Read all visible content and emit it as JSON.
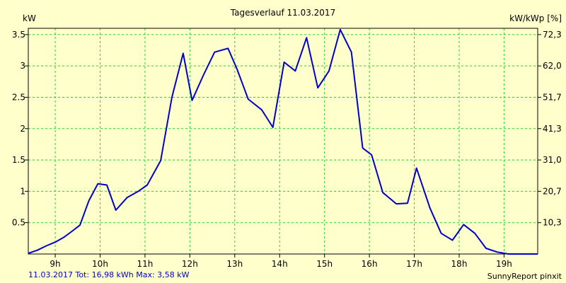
{
  "chart_data": {
    "type": "line",
    "title": "Tagesverlauf 11.03.2017",
    "ylabel_left": "kW",
    "ylabel_right": "kW/kWp [%]",
    "xlabel": "",
    "x_ticks": [
      "9h",
      "10h",
      "11h",
      "12h",
      "13h",
      "14h",
      "15h",
      "16h",
      "17h",
      "18h",
      "19h"
    ],
    "y_ticks_left": [
      "0.5",
      "1",
      "1.5",
      "2",
      "2.5",
      "3",
      "3.5"
    ],
    "y_ticks_right": [
      "10,3",
      "20,7",
      "31,0",
      "41,3",
      "51,7",
      "62,0",
      "72,3"
    ],
    "ylim": [
      0,
      3.6
    ],
    "xlim": [
      8.4,
      19.75
    ],
    "grid": true,
    "line_color": "#0000cc",
    "grid_color": "#33cc33",
    "series": [
      {
        "x": [
          8.4,
          8.6,
          8.8,
          9.0,
          9.2,
          9.35,
          9.55,
          9.75,
          9.95,
          10.15,
          10.35,
          10.6,
          10.85,
          11.05,
          11.35,
          11.6,
          11.85,
          12.05,
          12.3,
          12.55,
          12.85,
          13.05,
          13.3,
          13.6,
          13.85,
          14.1,
          14.35,
          14.6,
          14.85,
          15.1,
          15.35,
          15.6,
          15.85,
          16.05,
          16.3,
          16.6,
          16.85,
          17.05,
          17.35,
          17.6,
          17.85,
          18.1,
          18.35,
          18.6,
          18.85,
          19.1,
          19.35,
          19.75
        ],
        "values": [
          0.01,
          0.06,
          0.13,
          0.19,
          0.27,
          0.35,
          0.46,
          0.85,
          1.12,
          1.1,
          0.7,
          0.9,
          1.0,
          1.1,
          1.49,
          2.5,
          3.2,
          2.45,
          2.85,
          3.22,
          3.28,
          2.95,
          2.47,
          2.3,
          2.02,
          3.06,
          2.92,
          3.45,
          2.65,
          2.92,
          3.58,
          3.22,
          1.69,
          1.58,
          0.98,
          0.8,
          0.81,
          1.37,
          0.73,
          0.33,
          0.22,
          0.47,
          0.33,
          0.09,
          0.03,
          0.0,
          0.0,
          0.0
        ]
      }
    ]
  },
  "footer": {
    "summary": "11.03.2017 Tot: 16,98 kWh Max: 3,58 kW",
    "brand": "SunnyReport pinxit"
  }
}
